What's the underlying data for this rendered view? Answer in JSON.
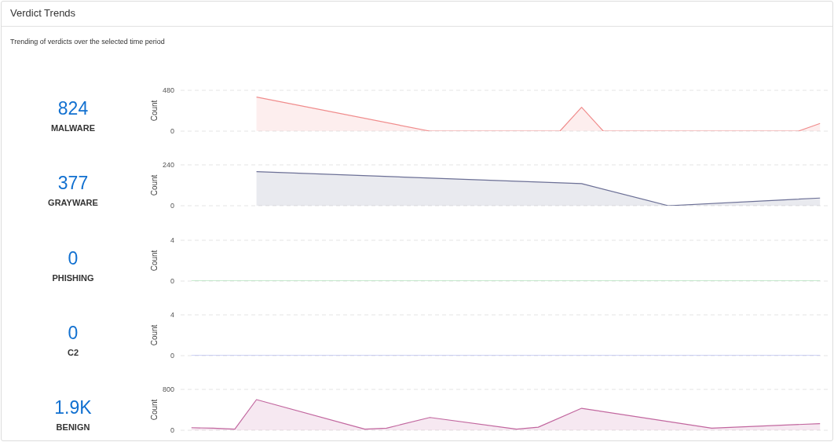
{
  "chart_data": [
    {
      "type": "other",
      "title": "Verdict Trends",
      "subtitle": "Trending of verdicts over the selected time period"
    },
    {
      "type": "other",
      "title": "MALWARE",
      "annotations": [
        "824"
      ]
    },
    {
      "type": "area",
      "ylabel": "Count",
      "categories": [
        null,
        null,
        null,
        null,
        null,
        null,
        null,
        null,
        null,
        null,
        null,
        null,
        null,
        null,
        null,
        null,
        null,
        null,
        null,
        null,
        null,
        null,
        null,
        null,
        null,
        null,
        null,
        null,
        null,
        null
      ],
      "values": [
        null,
        null,
        null,
        400,
        null,
        null,
        null,
        null,
        null,
        null,
        null,
        0,
        null,
        null,
        null,
        null,
        null,
        0,
        280,
        0,
        null,
        null,
        null,
        null,
        null,
        null,
        null,
        null,
        0,
        90
      ],
      "color": "#f08c8c",
      "ylim": [
        0,
        480
      ],
      "yticks": [
        0,
        480
      ],
      "grid": "y",
      "tick_labels": "y"
    },
    {
      "type": "other",
      "title": "GRAYWARE",
      "annotations": [
        "377"
      ]
    },
    {
      "type": "area",
      "ylabel": "Count",
      "categories": [
        null,
        null,
        null,
        null,
        null,
        null,
        null,
        null,
        null,
        null,
        null,
        null,
        null,
        null,
        null,
        null,
        null,
        null,
        null,
        null,
        null,
        null,
        null,
        null,
        null,
        null,
        null,
        null,
        null,
        null
      ],
      "values": [
        null,
        null,
        null,
        200,
        null,
        null,
        null,
        null,
        null,
        null,
        null,
        null,
        null,
        null,
        null,
        null,
        null,
        null,
        130,
        null,
        null,
        null,
        0,
        null,
        null,
        null,
        null,
        null,
        null,
        45
      ],
      "color": "#6c7096",
      "ylim": [
        0,
        240
      ],
      "yticks": [
        0,
        240
      ],
      "grid": "y",
      "tick_labels": "y"
    },
    {
      "type": "other",
      "title": "PHISHING",
      "annotations": [
        "0"
      ]
    },
    {
      "type": "line",
      "ylabel": "Count",
      "categories": [
        null,
        null,
        null,
        null,
        null,
        null,
        null,
        null,
        null,
        null,
        null,
        null,
        null,
        null,
        null,
        null,
        null,
        null,
        null,
        null,
        null,
        null,
        null,
        null,
        null,
        null,
        null,
        null,
        null,
        null
      ],
      "values": [
        0,
        0,
        0,
        0,
        0,
        0,
        0,
        0,
        0,
        0,
        0,
        0,
        0,
        0,
        0,
        0,
        0,
        0,
        0,
        0,
        0,
        0,
        0,
        0,
        0,
        0,
        0,
        0,
        0,
        0
      ],
      "color": "#8fd8a0",
      "ylim": [
        0,
        4
      ],
      "yticks": [
        0,
        4
      ],
      "grid": "y",
      "tick_labels": "y"
    },
    {
      "type": "other",
      "title": "C2",
      "annotations": [
        "0"
      ]
    },
    {
      "type": "line",
      "ylabel": "Count",
      "categories": [
        null,
        null,
        null,
        null,
        null,
        null,
        null,
        null,
        null,
        null,
        null,
        null,
        null,
        null,
        null,
        null,
        null,
        null,
        null,
        null,
        null,
        null,
        null,
        null,
        null,
        null,
        null,
        null,
        null,
        null
      ],
      "values": [
        0,
        0,
        0,
        0,
        0,
        0,
        0,
        0,
        0,
        0,
        0,
        0,
        0,
        0,
        0,
        0,
        0,
        0,
        0,
        0,
        0,
        0,
        0,
        0,
        0,
        0,
        0,
        0,
        0,
        0
      ],
      "color": "#a0a8ee",
      "ylim": [
        0,
        4
      ],
      "yticks": [
        0,
        4
      ],
      "grid": "y",
      "tick_labels": "y"
    },
    {
      "type": "other",
      "title": "BENIGN",
      "annotations": [
        "1.9K"
      ]
    },
    {
      "type": "area",
      "ylabel": "Count",
      "categories": [
        null,
        null,
        null,
        null,
        null,
        null,
        null,
        null,
        null,
        null,
        null,
        null,
        null,
        null,
        null,
        null,
        null,
        null,
        null,
        null,
        null,
        null,
        null,
        null,
        null,
        null,
        null,
        null,
        null,
        null
      ],
      "values": [
        50,
        40,
        20,
        600,
        null,
        null,
        null,
        null,
        20,
        40,
        null,
        250,
        null,
        null,
        null,
        20,
        60,
        null,
        430,
        null,
        null,
        null,
        null,
        null,
        40,
        null,
        null,
        null,
        null,
        130
      ],
      "color": "#c2679f",
      "ylim": [
        0,
        800
      ],
      "yticks": [
        0,
        800
      ],
      "grid": "y",
      "tick_labels": "y"
    }
  ]
}
